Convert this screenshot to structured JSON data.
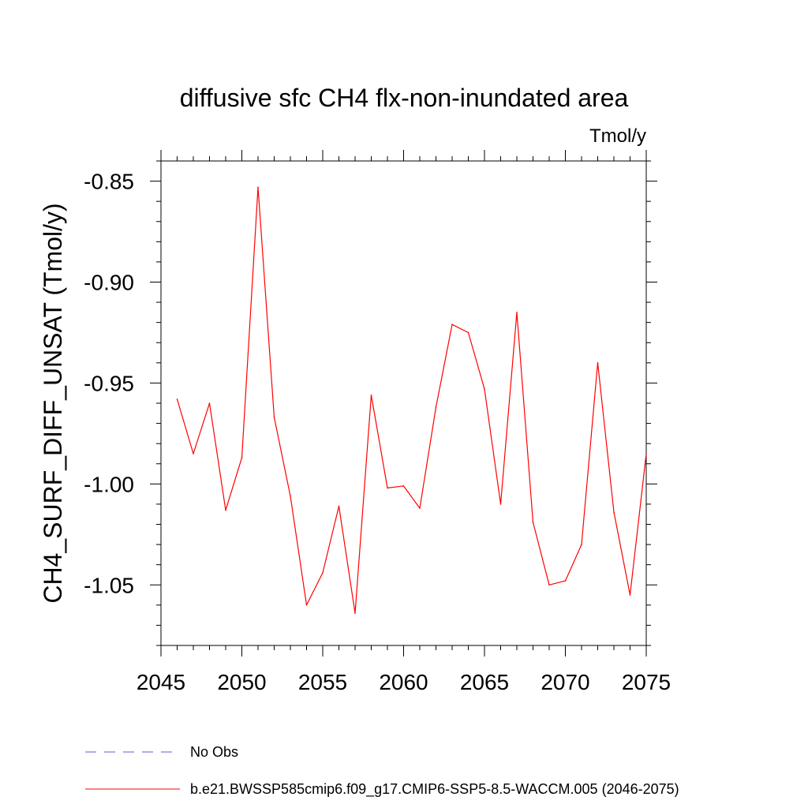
{
  "chart_data": {
    "type": "line",
    "title": "diffusive sfc CH4 flx-non-inundated area",
    "units_label": "Tmol/y",
    "xlabel": "",
    "ylabel": "CH4_SURF_DIFF_UNSAT  (Tmol/y)",
    "xlim": [
      2045,
      2075
    ],
    "ylim": [
      -1.08,
      -0.84
    ],
    "xticks": [
      2045,
      2050,
      2055,
      2060,
      2065,
      2070,
      2075
    ],
    "xtick_labels": [
      "2045",
      "2050",
      "2055",
      "2060",
      "2065",
      "2070",
      "2075"
    ],
    "yticks": [
      -1.05,
      -1.0,
      -0.95,
      -0.9,
      -0.85
    ],
    "ytick_labels": [
      "-1.05",
      "-1.00",
      "-0.95",
      "-0.90",
      "-0.85"
    ],
    "grid": false,
    "series": [
      {
        "name": "b.e21.BWSSP585cmip6.f09_g17.CMIP6-SSP5-8.5-WACCM.005 (2046-2075)",
        "color": "#ff0000",
        "style": "solid",
        "x": [
          2046,
          2047,
          2048,
          2049,
          2050,
          2051,
          2052,
          2053,
          2054,
          2055,
          2056,
          2057,
          2058,
          2059,
          2060,
          2061,
          2062,
          2063,
          2064,
          2065,
          2066,
          2067,
          2068,
          2069,
          2070,
          2071,
          2072,
          2073,
          2074,
          2075
        ],
        "values": [
          -0.958,
          -0.985,
          -0.96,
          -1.013,
          -0.987,
          -0.853,
          -0.967,
          -1.006,
          -1.06,
          -1.044,
          -1.011,
          -1.064,
          -0.956,
          -1.002,
          -1.001,
          -1.012,
          -0.962,
          -0.921,
          -0.925,
          -0.953,
          -1.01,
          -0.915,
          -1.019,
          -1.05,
          -1.048,
          -1.03,
          -0.94,
          -1.014,
          -1.055,
          -0.985
        ]
      }
    ],
    "legend": {
      "placement": "bottom-left",
      "entries": [
        {
          "label": "No Obs",
          "color": "#6a5acd",
          "style": "dashed"
        },
        {
          "label": "b.e21.BWSSP585cmip6.f09_g17.CMIP6-SSP5-8.5-WACCM.005 (2046-2075)",
          "color": "#ff0000",
          "style": "solid"
        }
      ]
    }
  }
}
